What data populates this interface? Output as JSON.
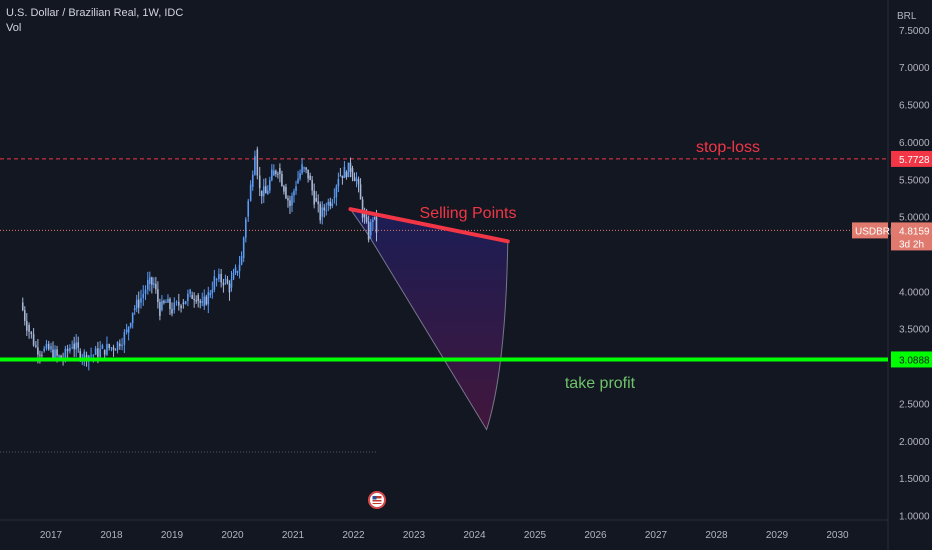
{
  "legend": {
    "title": "U.S. Dollar / Brazilian Real, 1W, IDC",
    "indicator": "Vol"
  },
  "chart_data": {
    "type": "candlestick",
    "symbol": "USDBRL",
    "currency_label": "BRL",
    "y_ticks": [
      1.0,
      1.5,
      2.0,
      2.5,
      3.0,
      3.5,
      4.0,
      4.5,
      5.0,
      5.5,
      6.0,
      6.5,
      7.0,
      7.5
    ],
    "y_tick_labels": [
      "1.0000",
      "1.5000",
      "2.0000",
      "2.5000",
      "",
      "3.5000",
      "4.0000",
      "",
      "5.0000",
      "5.5000",
      "6.0000",
      "6.5000",
      "7.0000",
      "7.5000"
    ],
    "ylim": [
      0.94,
      7.9
    ],
    "x_ticks": [
      "2017",
      "2018",
      "2019",
      "2020",
      "2021",
      "2022",
      "2023",
      "2024",
      "2025",
      "2026",
      "2027",
      "2028",
      "2029",
      "2030"
    ],
    "x_start_year": 2016.5,
    "x_per_year": 60.5,
    "price_series": [
      [
        2016.5,
        3.85
      ],
      [
        2016.6,
        3.55
      ],
      [
        2016.75,
        3.25
      ],
      [
        2016.85,
        3.2
      ],
      [
        2017.0,
        3.22
      ],
      [
        2017.1,
        3.12
      ],
      [
        2017.2,
        3.1
      ],
      [
        2017.35,
        3.3
      ],
      [
        2017.45,
        3.2
      ],
      [
        2017.55,
        3.15
      ],
      [
        2017.7,
        3.15
      ],
      [
        2017.85,
        3.22
      ],
      [
        2018.0,
        3.25
      ],
      [
        2018.1,
        3.3
      ],
      [
        2018.25,
        3.45
      ],
      [
        2018.35,
        3.75
      ],
      [
        2018.45,
        3.85
      ],
      [
        2018.6,
        4.1
      ],
      [
        2018.7,
        4.1
      ],
      [
        2018.8,
        3.75
      ],
      [
        2018.9,
        3.85
      ],
      [
        2019.0,
        3.75
      ],
      [
        2019.15,
        3.85
      ],
      [
        2019.3,
        3.95
      ],
      [
        2019.4,
        3.95
      ],
      [
        2019.5,
        3.8
      ],
      [
        2019.6,
        3.95
      ],
      [
        2019.7,
        4.15
      ],
      [
        2019.85,
        4.15
      ],
      [
        2019.95,
        4.05
      ],
      [
        2020.05,
        4.25
      ],
      [
        2020.15,
        4.45
      ],
      [
        2020.22,
        5.0
      ],
      [
        2020.3,
        5.4
      ],
      [
        2020.37,
        5.9
      ],
      [
        2020.45,
        5.35
      ],
      [
        2020.55,
        5.3
      ],
      [
        2020.65,
        5.55
      ],
      [
        2020.75,
        5.65
      ],
      [
        2020.85,
        5.4
      ],
      [
        2020.95,
        5.15
      ],
      [
        2021.05,
        5.45
      ],
      [
        2021.15,
        5.65
      ],
      [
        2021.25,
        5.55
      ],
      [
        2021.35,
        5.25
      ],
      [
        2021.45,
        5.0
      ],
      [
        2021.55,
        5.15
      ],
      [
        2021.65,
        5.25
      ],
      [
        2021.75,
        5.55
      ],
      [
        2021.85,
        5.6
      ],
      [
        2021.95,
        5.65
      ],
      [
        2022.05,
        5.5
      ],
      [
        2022.15,
        5.05
      ],
      [
        2022.25,
        4.75
      ],
      [
        2022.32,
        5.0
      ],
      [
        2022.38,
        4.82
      ]
    ],
    "annotations": {
      "stop_loss": {
        "value": 5.7728,
        "label": "stop-loss",
        "price_label": "5.7728",
        "color": "#f23645"
      },
      "take_profit": {
        "value": 3.0888,
        "label": "take profit",
        "price_label": "3.0888",
        "color": "#00ff00"
      },
      "selling_points": {
        "label": "Selling Points",
        "color": "#f23645",
        "from": [
          2021.95,
          5.1
        ],
        "to": [
          2024.55,
          4.67
        ]
      },
      "current_price": {
        "value": 4.8159,
        "symbol_label": "USDBRL",
        "price_label": "4.8159",
        "countdown": "3d 2h"
      },
      "arc_tip": [
        2022.25,
        4.75
      ],
      "arc_end": [
        2024.55,
        4.67
      ],
      "arc_bottom": [
        2024.2,
        2.15
      ]
    },
    "colors": {
      "background": "#131722",
      "up_candle": "#5b9cf6",
      "down_candle": "#a8b8d8",
      "grid_dashed": "#f23645",
      "text": "#d1d4dc",
      "axis_text": "#b2b5be",
      "fill_top": "#1c1f5e",
      "fill_bottom": "#4a1640"
    }
  }
}
